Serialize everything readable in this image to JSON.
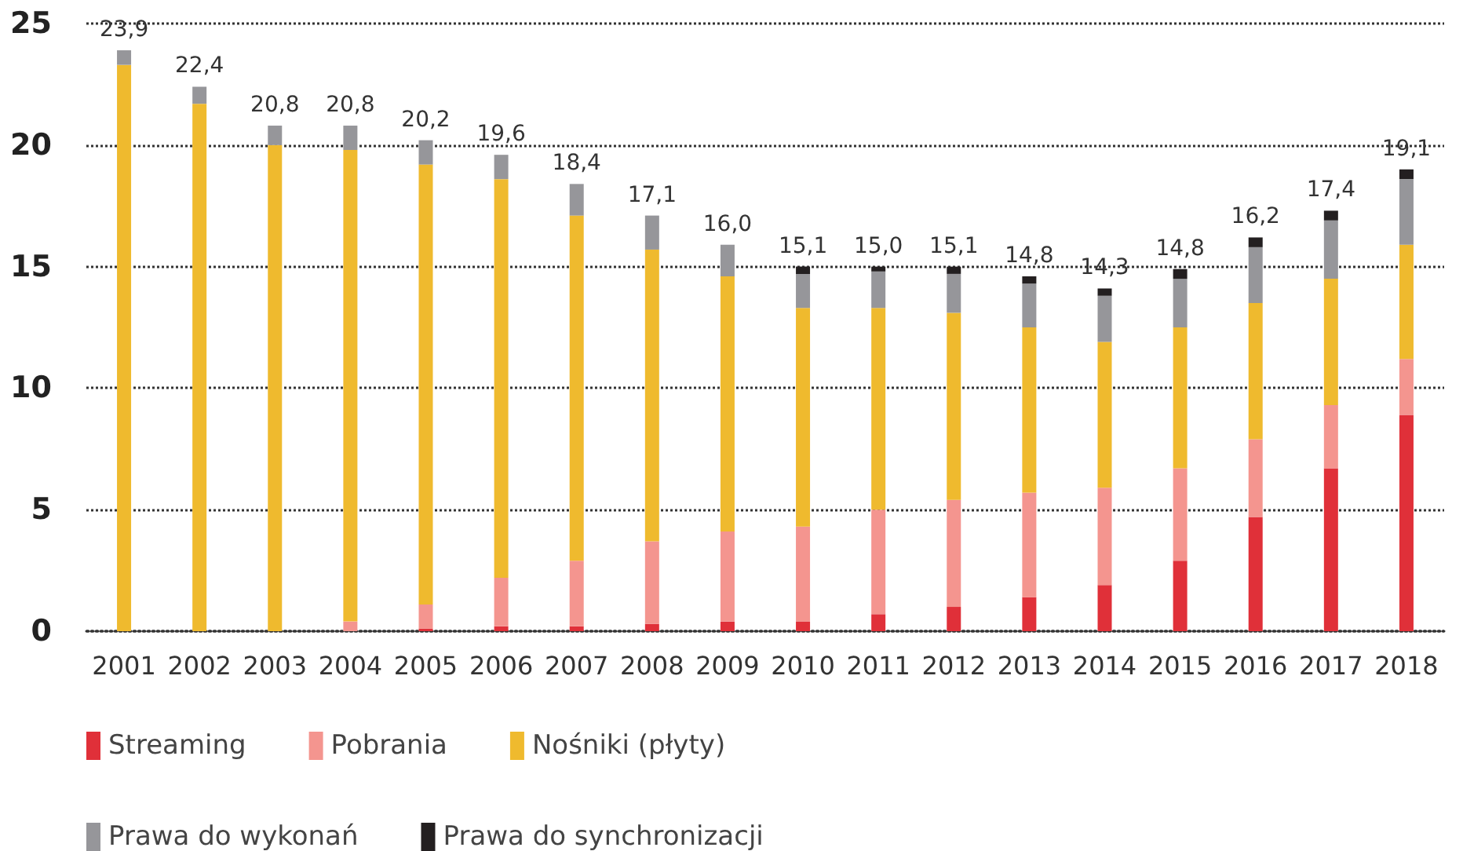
{
  "chart_data": {
    "type": "bar",
    "stacked": true,
    "categories": [
      "2001",
      "2002",
      "2003",
      "2004",
      "2005",
      "2006",
      "2007",
      "2008",
      "2009",
      "2010",
      "2011",
      "2012",
      "2013",
      "2014",
      "2015",
      "2016",
      "2017",
      "2018"
    ],
    "series": [
      {
        "name": "Streaming",
        "color": "#e03039",
        "values": [
          0,
          0,
          0,
          0,
          0.1,
          0.2,
          0.2,
          0.3,
          0.4,
          0.4,
          0.7,
          1.0,
          1.4,
          1.9,
          2.9,
          4.7,
          6.7,
          8.9
        ]
      },
      {
        "name": "Pobrania",
        "color": "#f4958f",
        "values": [
          0,
          0,
          0,
          0.4,
          1.0,
          2.0,
          2.7,
          3.4,
          3.7,
          3.9,
          4.3,
          4.4,
          4.3,
          4.0,
          3.8,
          3.2,
          2.6,
          2.3
        ]
      },
      {
        "name": "Nośniki (płyty)",
        "color": "#efba2e",
        "values": [
          23.3,
          21.7,
          20.0,
          19.4,
          18.1,
          16.4,
          14.2,
          12.0,
          10.5,
          9.0,
          8.3,
          7.7,
          6.8,
          6.0,
          5.8,
          5.6,
          5.2,
          4.7
        ]
      },
      {
        "name": "Prawa do wykonań",
        "color": "#96969a",
        "values": [
          0.6,
          0.7,
          0.8,
          1.0,
          1.0,
          1.0,
          1.3,
          1.4,
          1.3,
          1.4,
          1.5,
          1.6,
          1.8,
          1.9,
          2.0,
          2.3,
          2.4,
          2.7
        ]
      },
      {
        "name": "Prawa do synchronizacji",
        "color": "#231f20",
        "values": [
          null,
          null,
          null,
          null,
          null,
          null,
          null,
          null,
          null,
          0.3,
          0.2,
          0.3,
          0.3,
          0.3,
          0.4,
          0.4,
          0.4,
          0.4
        ]
      }
    ],
    "totals": [
      "23,9",
      "22,4",
      "20,8",
      "20,8",
      "20,2",
      "19,6",
      "18,4",
      "17,1",
      "16,0",
      "15,1",
      "15,0",
      "15,1",
      "14,8",
      "14,3",
      "14,8",
      "16,2",
      "17,4",
      "19,1"
    ],
    "ylim": [
      0,
      25
    ],
    "yticks": [
      0,
      5,
      10,
      15,
      20,
      25
    ],
    "grid": "y",
    "legend": "bottom left"
  }
}
